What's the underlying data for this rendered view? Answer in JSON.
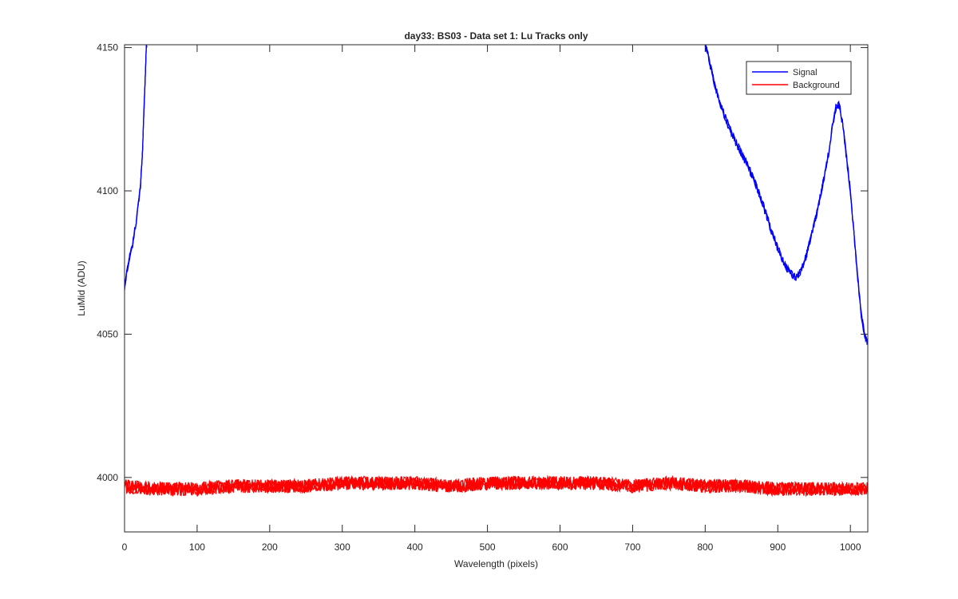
{
  "chart_data": {
    "type": "line",
    "title": "day33: BS03 - Data set 1: Lu Tracks only",
    "xlabel": "Wavelength (pixels)",
    "ylabel": "LuMid (ADU)",
    "xlim": [
      0,
      1024
    ],
    "ylim": [
      3981,
      4151
    ],
    "xticks": [
      0,
      100,
      200,
      300,
      400,
      500,
      600,
      700,
      800,
      900,
      1000
    ],
    "yticks": [
      4000,
      4050,
      4100,
      4150
    ],
    "grid": false,
    "legend_position": "top-right",
    "series": [
      {
        "name": "Signal",
        "color": "#0000ff",
        "segments": [
          {
            "x": [
              0,
              3,
              6,
              10,
              14,
              18,
              22,
              25,
              27,
              29,
              30,
              31
            ],
            "y": [
              4066,
              4071,
              4076,
              4080,
              4086,
              4093,
              4102,
              4115,
              4130,
              4143,
              4150,
              4151
            ]
          },
          {
            "x": [
              800,
              805,
              812,
              820,
              830,
              840,
              850,
              860,
              870,
              880,
              890,
              900,
              910,
              918,
              925,
              932,
              940,
              950,
              960,
              970,
              975,
              980,
              985,
              990,
              1000,
              1005,
              1010,
              1015,
              1020,
              1024
            ],
            "y": [
              4151,
              4146,
              4138,
              4131,
              4124,
              4118,
              4113,
              4108,
              4102,
              4095,
              4087,
              4080,
              4074,
              4071,
              4070,
              4072,
              4078,
              4088,
              4100,
              4113,
              4122,
              4129,
              4130,
              4122,
              4100,
              4085,
              4070,
              4057,
              4049,
              4047
            ]
          }
        ]
      },
      {
        "name": "Background",
        "color": "#ff0000",
        "x": [
          0,
          50,
          100,
          150,
          200,
          250,
          300,
          350,
          400,
          450,
          500,
          550,
          600,
          650,
          700,
          750,
          800,
          850,
          900,
          950,
          1000,
          1024
        ],
        "y": [
          3997,
          3996,
          3996,
          3997,
          3997,
          3997,
          3998,
          3998,
          3998,
          3997,
          3998,
          3998,
          3998,
          3998,
          3997,
          3998,
          3997,
          3997,
          3996,
          3996,
          3996,
          3996
        ]
      }
    ]
  }
}
